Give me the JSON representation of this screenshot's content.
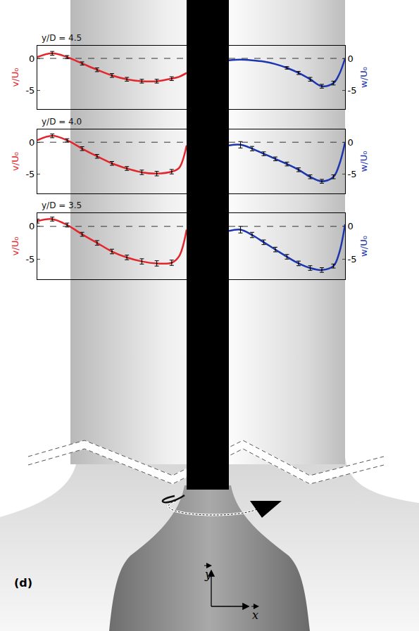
{
  "chart_data": [
    {
      "type": "line",
      "title": "y/D = 4.5",
      "ylabel": "v/U₀",
      "x": [
        0,
        0.1,
        0.2,
        0.3,
        0.4,
        0.5,
        0.6,
        0.7,
        0.8,
        0.9,
        0.95,
        1.0
      ],
      "xlim": [
        0,
        1
      ],
      "ylim": [
        -8,
        2
      ],
      "yticks": [
        0,
        -5
      ],
      "hline": 0,
      "tick_labels": "y",
      "series": [
        {
          "color": "#e3262b",
          "line_style": "solid",
          "values": [
            0.2,
            0.8,
            0.2,
            -0.8,
            -1.8,
            -2.7,
            -3.3,
            -3.6,
            -3.6,
            -3.2,
            -2.9,
            -2.3
          ],
          "errors": [
            null,
            0.3,
            0.25,
            0.25,
            0.3,
            0.3,
            0.3,
            0.3,
            0.3,
            0.3,
            null,
            null
          ]
        }
      ]
    },
    {
      "type": "line",
      "y2label": "w/U₀",
      "x": [
        0,
        0.1,
        0.2,
        0.3,
        0.4,
        0.5,
        0.6,
        0.7,
        0.8,
        0.9,
        0.95,
        1.0
      ],
      "xlim": [
        0,
        1
      ],
      "y2lim": [
        -8,
        2
      ],
      "y2ticks": [
        0,
        -5
      ],
      "hline": 0,
      "tick_labels": "y",
      "series": [
        {
          "color": "#1c35b0",
          "line_style": "solid",
          "axis": "y2",
          "values": [
            -0.3,
            -0.2,
            -0.3,
            -0.5,
            -0.9,
            -1.5,
            -2.3,
            -3.3,
            -4.4,
            -3.9,
            -2.5,
            0.0
          ],
          "errors": [
            null,
            null,
            null,
            null,
            null,
            0.2,
            0.25,
            0.3,
            0.3,
            0.3,
            null,
            null
          ]
        }
      ]
    },
    {
      "type": "line",
      "title": "y/D = 4.0",
      "ylabel": "v/U₀",
      "x": [
        0,
        0.1,
        0.2,
        0.3,
        0.4,
        0.5,
        0.6,
        0.7,
        0.8,
        0.9,
        0.95,
        1.0
      ],
      "xlim": [
        0,
        1
      ],
      "ylim": [
        -8,
        2
      ],
      "yticks": [
        0,
        -5
      ],
      "hline": 0,
      "tick_labels": "y",
      "series": [
        {
          "color": "#e3262b",
          "line_style": "solid",
          "values": [
            0.3,
            1.0,
            0.3,
            -1.0,
            -2.2,
            -3.3,
            -4.1,
            -4.7,
            -4.9,
            -4.6,
            -4.0,
            -0.5
          ],
          "errors": [
            null,
            0.3,
            0.25,
            0.3,
            0.3,
            0.3,
            0.3,
            0.35,
            0.35,
            0.35,
            null,
            null
          ]
        }
      ]
    },
    {
      "type": "line",
      "y2label": "w/U₀",
      "x": [
        0,
        0.1,
        0.2,
        0.3,
        0.4,
        0.5,
        0.6,
        0.7,
        0.8,
        0.9,
        0.95,
        1.0
      ],
      "xlim": [
        0,
        1
      ],
      "y2lim": [
        -8,
        2
      ],
      "y2ticks": [
        0,
        -5
      ],
      "hline": 0,
      "tick_labels": "y",
      "series": [
        {
          "color": "#1c35b0",
          "line_style": "solid",
          "axis": "y2",
          "values": [
            -0.5,
            -0.4,
            -1.0,
            -1.8,
            -2.6,
            -3.4,
            -4.3,
            -5.4,
            -6.1,
            -5.4,
            -3.5,
            0.0
          ],
          "errors": [
            null,
            0.5,
            0.35,
            0.3,
            0.3,
            0.3,
            0.3,
            0.3,
            0.3,
            0.3,
            null,
            null
          ]
        }
      ]
    },
    {
      "type": "line",
      "title": "y/D = 3.5",
      "ylabel": "v/U₀",
      "x": [
        0,
        0.1,
        0.2,
        0.3,
        0.4,
        0.5,
        0.6,
        0.7,
        0.8,
        0.9,
        0.95,
        1.0
      ],
      "xlim": [
        0,
        1
      ],
      "ylim": [
        -8,
        2
      ],
      "yticks": [
        0,
        -5
      ],
      "hline": 0,
      "tick_labels": "y",
      "series": [
        {
          "color": "#e3262b",
          "line_style": "solid",
          "values": [
            0.8,
            1.1,
            0.2,
            -1.2,
            -2.5,
            -3.8,
            -4.7,
            -5.3,
            -5.6,
            -5.5,
            -4.5,
            -0.5
          ],
          "errors": [
            0.3,
            0.3,
            0.3,
            0.3,
            0.35,
            0.35,
            0.35,
            0.4,
            0.4,
            0.4,
            null,
            null
          ]
        }
      ]
    },
    {
      "type": "line",
      "y2label": "w/U₀",
      "x": [
        0,
        0.1,
        0.2,
        0.3,
        0.4,
        0.5,
        0.6,
        0.7,
        0.8,
        0.9,
        0.95,
        1.0
      ],
      "xlim": [
        0,
        1
      ],
      "y2lim": [
        -8,
        2
      ],
      "y2ticks": [
        0,
        -5
      ],
      "hline": 0,
      "tick_labels": "y",
      "series": [
        {
          "color": "#1c35b0",
          "line_style": "solid",
          "axis": "y2",
          "values": [
            -0.7,
            -0.5,
            -1.3,
            -2.4,
            -3.5,
            -4.6,
            -5.6,
            -6.3,
            -6.6,
            -6.0,
            -4.0,
            0.3
          ],
          "errors": [
            null,
            0.5,
            0.4,
            0.35,
            0.35,
            0.35,
            0.35,
            0.35,
            0.35,
            0.3,
            null,
            null
          ]
        }
      ]
    }
  ],
  "panel_label": "(d)",
  "axis_labels": {
    "x": "x",
    "y": "y"
  }
}
